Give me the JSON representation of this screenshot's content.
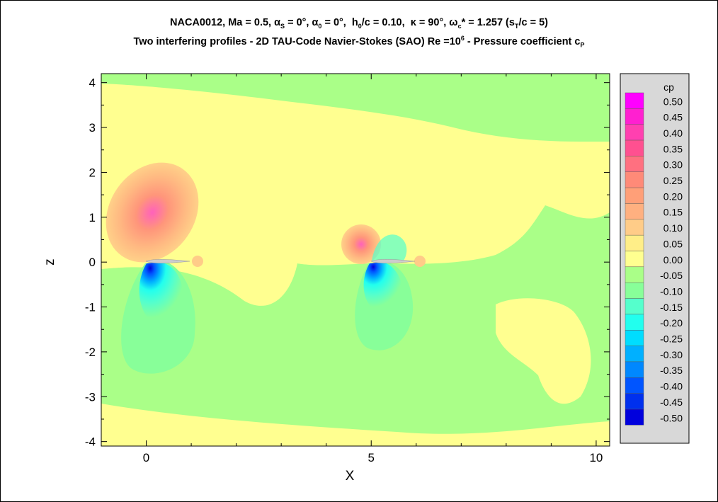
{
  "titles": {
    "line1": "NACA0012, Ma = 0.5, αS = 0°, α0 = 0°,  h0/c = 0.10,  κ = 90°, ωc* = 1.257 (sT/c = 5)",
    "line2": "Two interfering profiles - 2D TAU-Code Navier-Stokes (SAO) Re =10⁶ - Pressure coefficient cP"
  },
  "chart_data": {
    "type": "heatmap",
    "xlabel": "X",
    "ylabel": "z",
    "xlim": [
      -1,
      10.3
    ],
    "ylim": [
      -4.1,
      4.2
    ],
    "x_ticks": [
      0,
      5,
      10
    ],
    "y_ticks": [
      4,
      3,
      2,
      1,
      0,
      -1,
      -2,
      -3,
      -4
    ],
    "legend": {
      "title": "cp",
      "placement": "right",
      "levels": [
        0.5,
        0.45,
        0.4,
        0.35,
        0.3,
        0.25,
        0.2,
        0.15,
        0.1,
        0.05,
        0.0,
        -0.05,
        -0.1,
        -0.15,
        -0.2,
        -0.25,
        -0.3,
        -0.35,
        -0.4,
        -0.45,
        -0.5
      ],
      "labels": [
        "0.50",
        "0.45",
        "0.40",
        "0.35",
        "0.30",
        "0.25",
        "0.20",
        "0.15",
        "0.10",
        "0.05",
        "0.00",
        "-0.05",
        "-0.10",
        "-0.15",
        "-0.20",
        "-0.25",
        "-0.30",
        "-0.35",
        "-0.40",
        "-0.45",
        "-0.50"
      ],
      "colors": [
        "#ff00ff",
        "#ff20d0",
        "#ff40b0",
        "#ff5090",
        "#ff7080",
        "#ff8a78",
        "#ff9f78",
        "#ffb080",
        "#ffcc88",
        "#ffee88",
        "#ffff90",
        "#aaff88",
        "#88ff99",
        "#55ffcc",
        "#22ffee",
        "#00ddff",
        "#00b0ff",
        "#0088ff",
        "#0055ff",
        "#0030ee",
        "#0000dd"
      ]
    },
    "profiles": [
      {
        "leading_edge_x": 0,
        "z": 0
      },
      {
        "leading_edge_x": 5,
        "z": 0
      }
    ]
  }
}
